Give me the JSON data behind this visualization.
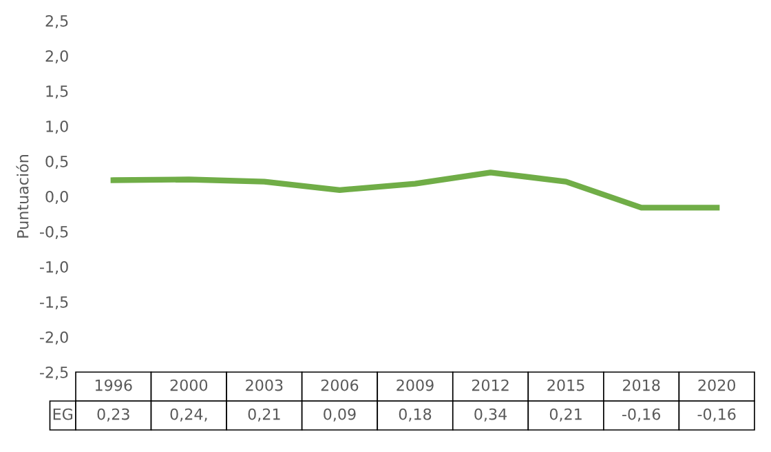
{
  "chart_data": {
    "type": "line",
    "ylabel": "Puntuación",
    "categories": [
      "1996",
      "2000",
      "2003",
      "2006",
      "2009",
      "2012",
      "2015",
      "2018",
      "2020"
    ],
    "series": [
      {
        "name": "EG",
        "color": "#70ad47",
        "values": [
          0.23,
          0.24,
          0.21,
          0.09,
          0.18,
          0.34,
          0.21,
          -0.16,
          -0.16
        ],
        "value_labels": [
          "0,23",
          "0,24,",
          "0,21",
          "0,09",
          "0,18",
          "0,34",
          "0,21",
          "-0,16",
          "-0,16"
        ]
      }
    ],
    "ylim": [
      -2.5,
      2.5
    ],
    "yticks": [
      {
        "value": -2.5,
        "label": "-2,5"
      },
      {
        "value": -2.0,
        "label": "-2,0"
      },
      {
        "value": -1.5,
        "label": "-1,5"
      },
      {
        "value": -1.0,
        "label": "-1,0"
      },
      {
        "value": -0.5,
        "label": "-0,5"
      },
      {
        "value": 0.0,
        "label": "0,0"
      },
      {
        "value": 0.5,
        "label": "0,5"
      },
      {
        "value": 1.0,
        "label": "1,0"
      },
      {
        "value": 1.5,
        "label": "1,5"
      },
      {
        "value": 2.0,
        "label": "2,0"
      },
      {
        "value": 2.5,
        "label": "2,5"
      }
    ],
    "grid": false,
    "legend": false,
    "marker": "none",
    "line_style": "solid"
  }
}
